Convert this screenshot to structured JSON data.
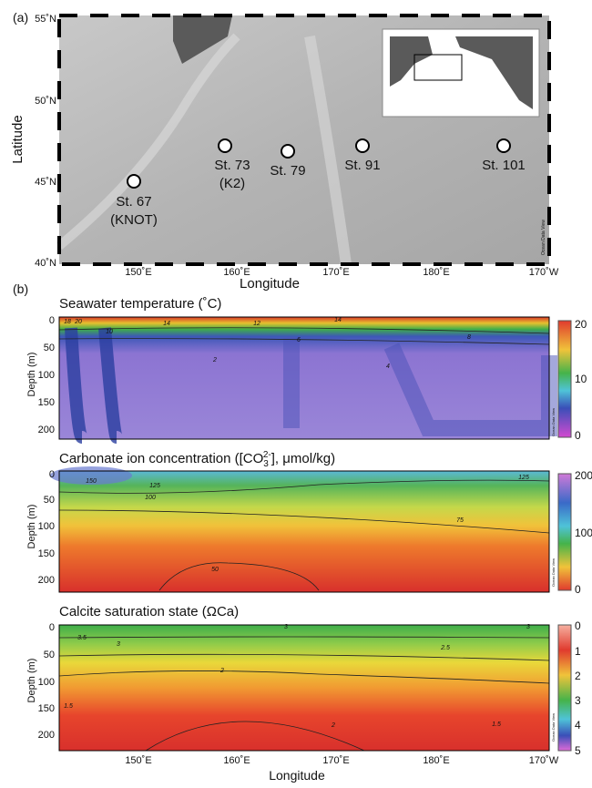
{
  "panel_a": {
    "label": "(a)",
    "ylabel": "Latitude",
    "xlabel": "Longitude",
    "lat_ticks": [
      "55˚N",
      "50˚N",
      "45˚N",
      "40˚N"
    ],
    "lon_ticks": [
      "150˚E",
      "160˚E",
      "170˚E",
      "180˚E",
      "170˚W"
    ],
    "stations": [
      {
        "name": "St. 67",
        "alt": "(KNOT)"
      },
      {
        "name": "St. 73",
        "alt": "(K2)"
      },
      {
        "name": "St. 79"
      },
      {
        "name": "St. 91"
      },
      {
        "name": "St. 101"
      }
    ],
    "credit": "Ocean Data View"
  },
  "panel_b": {
    "label": "(b)",
    "xlabel": "Longitude",
    "ylabel": "Depth (m)",
    "lon_ticks": [
      "150˚E",
      "160˚E",
      "170˚E",
      "180˚E",
      "170˚W"
    ],
    "depth_ticks": [
      "0",
      "50",
      "100",
      "150",
      "200"
    ],
    "credit": "Ocean Data View",
    "sections": [
      {
        "title_parts": [
          "Seawater temperature (˚C)"
        ],
        "colorbar_ticks": [
          "20",
          "10",
          "0"
        ],
        "contour_labels": [
          "18",
          "20",
          "14",
          "12",
          "10",
          "6",
          "2",
          "4",
          "14",
          "8"
        ]
      },
      {
        "title_parts": [
          "Carbonate ion concentration ([CO",
          "3",
          "2-",
          "], μmol/kg)"
        ],
        "colorbar_ticks": [
          "200",
          "100",
          "0"
        ],
        "contour_labels": [
          "150",
          "125",
          "100",
          "125",
          "75",
          "50"
        ]
      },
      {
        "title_parts": [
          "Calcite saturation state (ΩCa)"
        ],
        "colorbar_ticks": [
          "0",
          "1",
          "2",
          "3",
          "4",
          "5"
        ],
        "contour_labels": [
          "3.5",
          "3",
          "3",
          "3",
          "2.5",
          "2",
          "2",
          "1.5",
          "1.5"
        ]
      }
    ]
  }
}
